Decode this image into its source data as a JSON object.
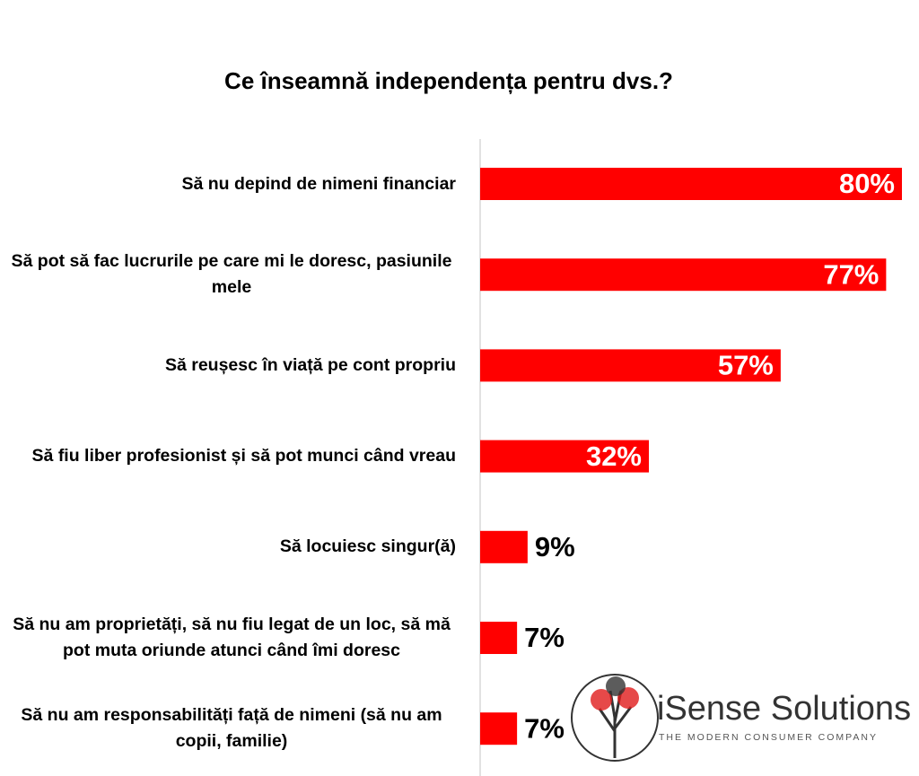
{
  "chart_data": {
    "type": "bar",
    "orientation": "horizontal",
    "title": "Ce înseamnă independența pentru dvs.?",
    "categories": [
      "Să nu depind de nimeni financiar",
      "Să pot să fac lucrurile pe care mi le doresc, pasiunile mele",
      "Să reușesc în viață pe cont propriu",
      "Să fiu liber profesionist și să pot munci când vreau",
      "Să locuiesc singur(ă)",
      "Să nu am proprietăți, să nu fiu legat de un loc, să mă pot muta oriunde atunci când îmi doresc",
      "Să nu am responsabilități față de nimeni (să nu am copii, familie)"
    ],
    "values": [
      80,
      77,
      57,
      32,
      9,
      7,
      7
    ],
    "value_labels": [
      "80%",
      "77%",
      "57%",
      "32%",
      "9%",
      "7%",
      "7%"
    ],
    "color": "#ff0000"
  },
  "logo": {
    "name": "iSense Solutions",
    "tagline": "THE MODERN CONSUMER COMPANY"
  }
}
